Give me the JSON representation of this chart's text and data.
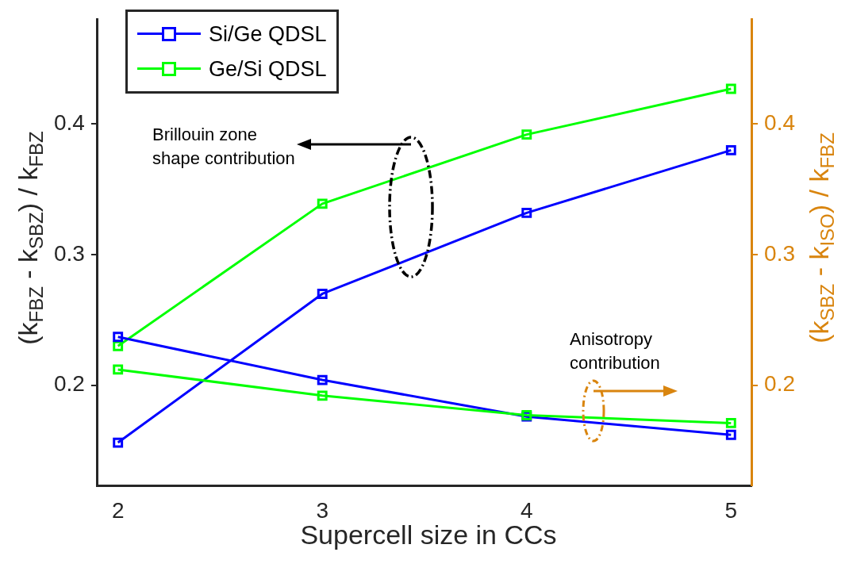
{
  "chart_data": {
    "type": "line",
    "xlabel": "Supercell size in CCs",
    "ylabel": "(k$_{FBZ}$ - k$_{SBZ}$) / k$_{FBZ}$",
    "y2label": "(k$_{SBZ}$ - k$_{ISO}$) / k$_{FBZ}$",
    "x": [
      2,
      3,
      4,
      5
    ],
    "series": [
      {
        "name": "Si/Ge QDSL",
        "color": "#0000ff",
        "values": [
          0.156,
          0.27,
          0.332,
          0.38
        ]
      },
      {
        "name": "Ge/Si QDSL",
        "color": "#00ff00",
        "values": [
          0.23,
          0.339,
          0.392,
          0.427
        ]
      },
      {
        "color": "#0000ff",
        "axis": "y2",
        "values": [
          0.237,
          0.204,
          0.176,
          0.162
        ]
      },
      {
        "color": "#00ff00",
        "axis": "y2",
        "values": [
          0.212,
          0.192,
          0.177,
          0.171
        ]
      }
    ],
    "xlim": [
      1.9,
      5.1
    ],
    "xticks": [
      2,
      3,
      4,
      5
    ],
    "ylim": [
      0.123,
      0.48
    ],
    "yticks": [
      0.2,
      0.3,
      0.4
    ],
    "y2lim": [
      0.123,
      0.48
    ],
    "y2ticks": [
      0.2,
      0.3,
      0.4
    ],
    "marker": "square",
    "line_style": "solid",
    "grid": false,
    "legend": "top left",
    "annotations": [
      "Brillouin zone\nshape contribution",
      "Anisotropy\ncontribution"
    ]
  }
}
